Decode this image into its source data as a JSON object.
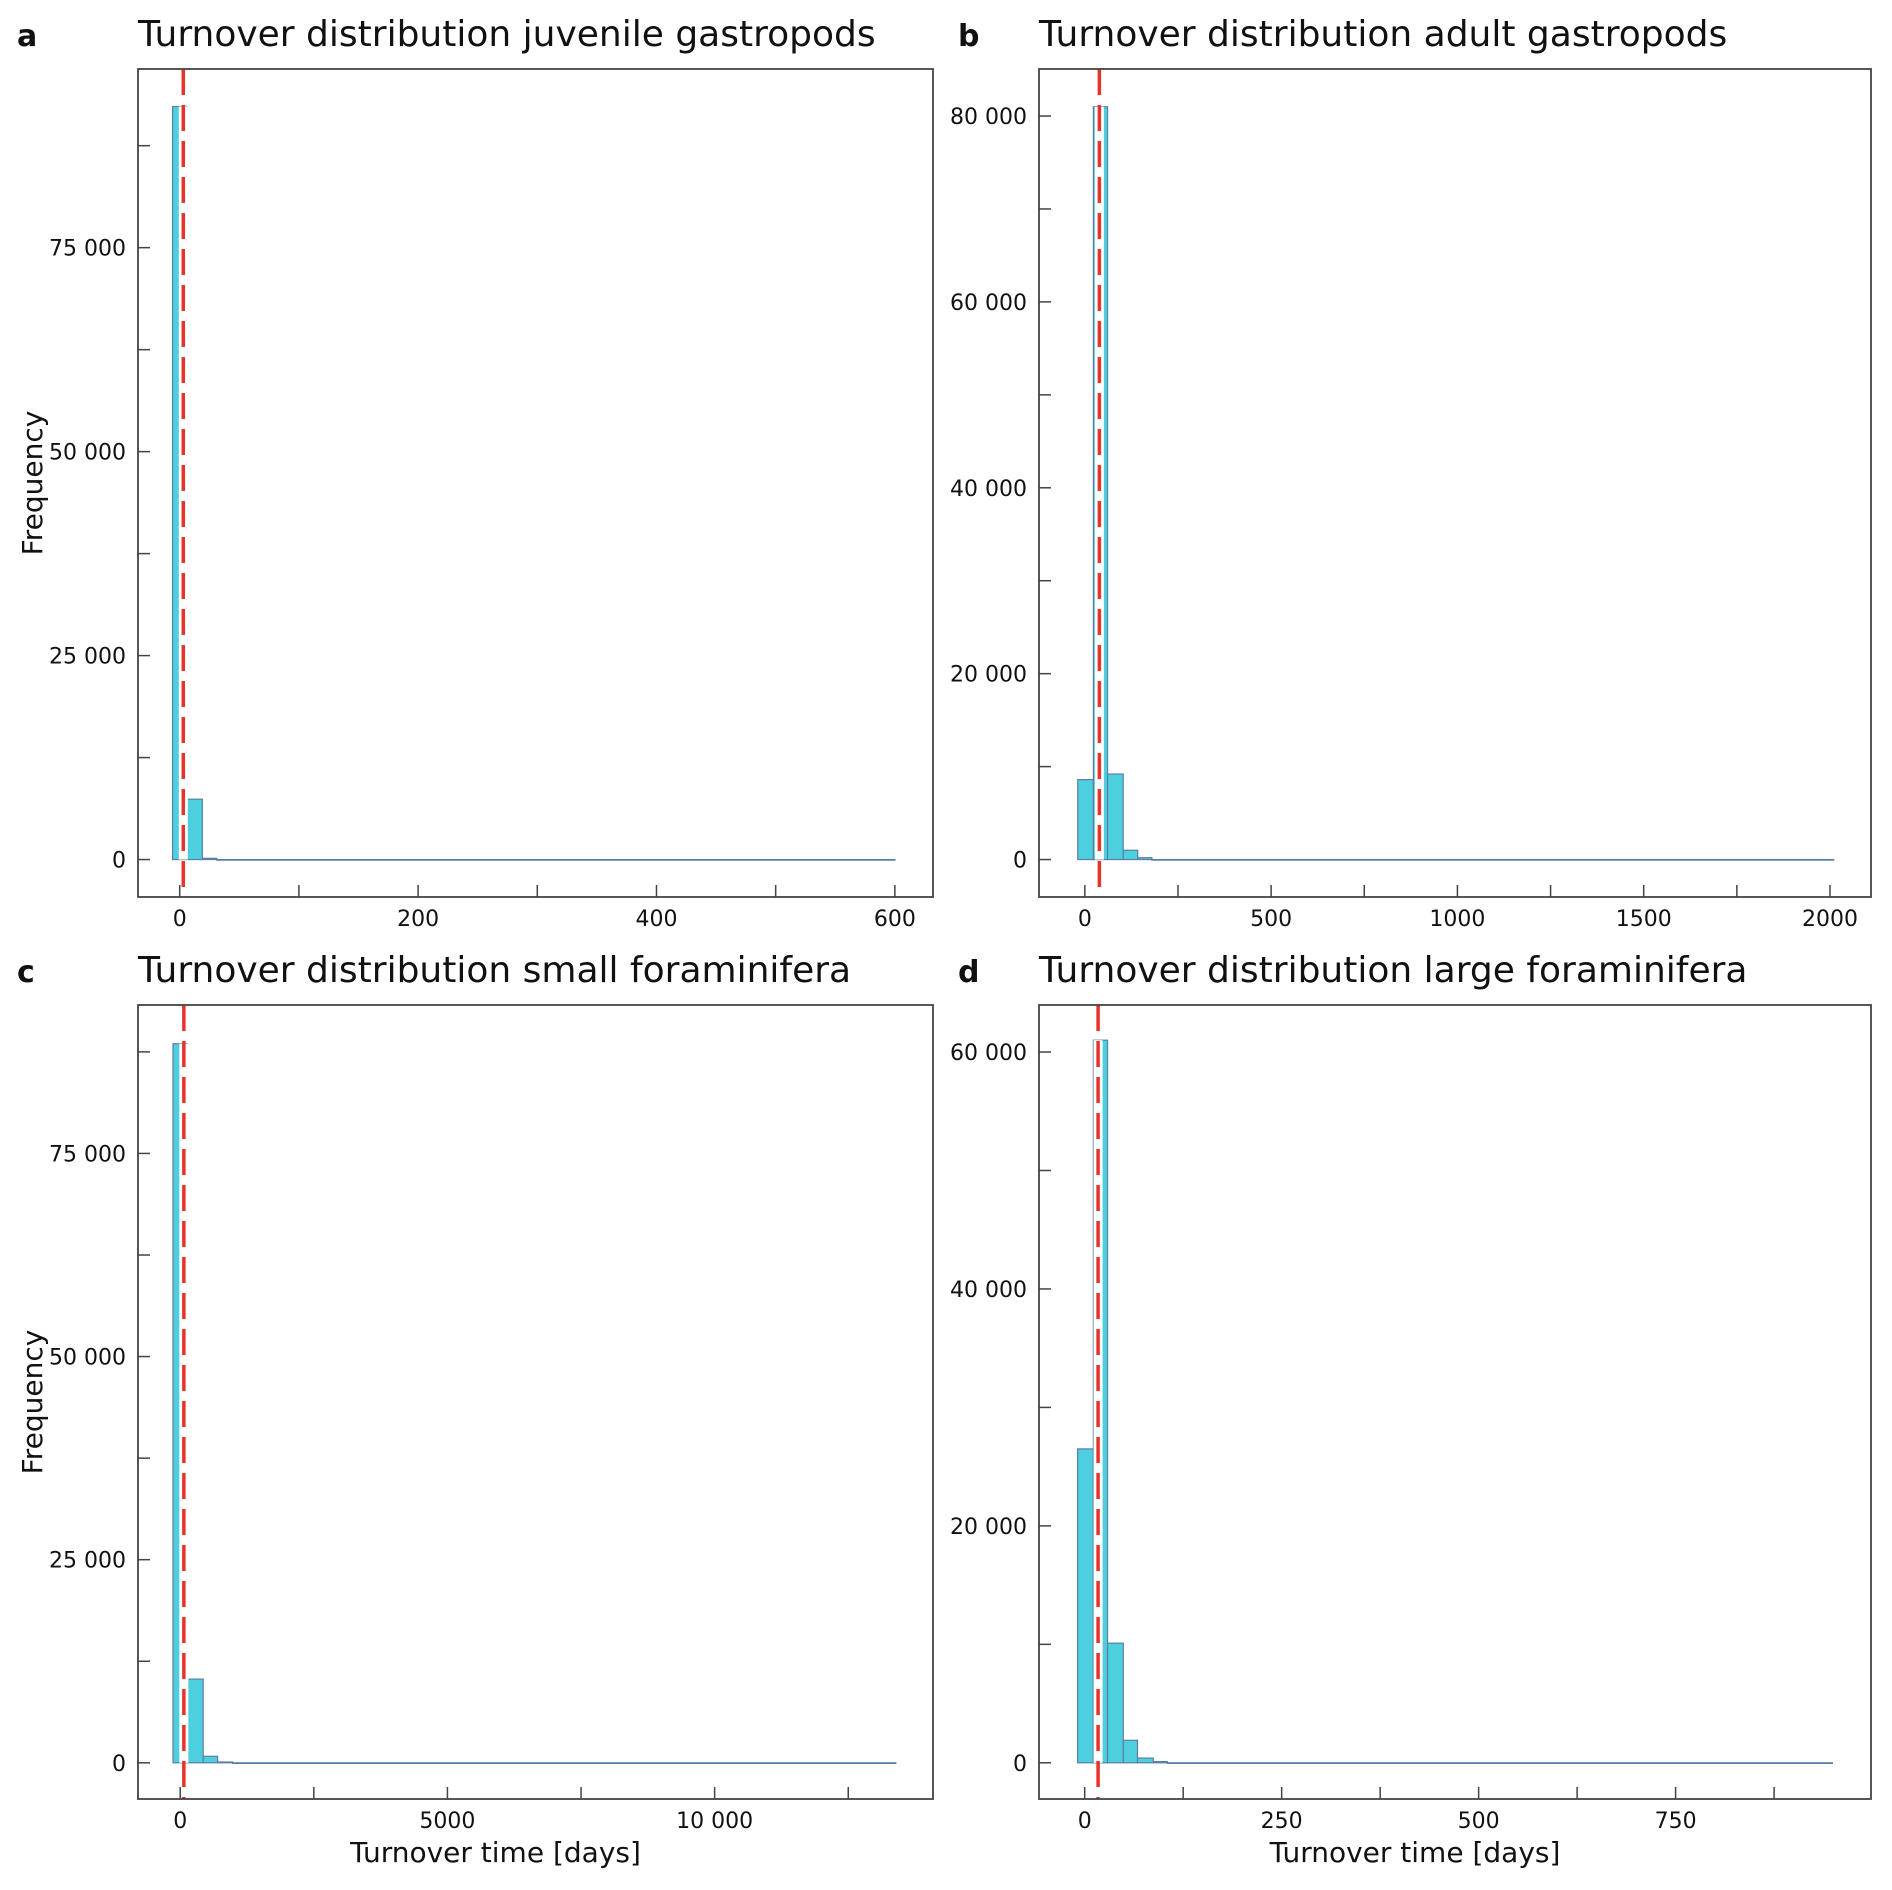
{
  "colors": {
    "bar_fill": "#4ecfe0",
    "bar_stroke": "#5b7fa3",
    "median_line": "#e8332a",
    "frame": "#444444"
  },
  "chart_data": [
    {
      "type": "bar",
      "panel": "a",
      "title": "Turnover distribution juvenile gastropods",
      "xlabel": "",
      "ylabel": "Frequency",
      "xlim": [
        -35,
        632
      ],
      "ylim": [
        -4590,
        96900
      ],
      "xticks": [
        0,
        100,
        200,
        300,
        400,
        500,
        600
      ],
      "xtick_labels": [
        "0",
        "",
        "200",
        "",
        "400",
        "",
        "600"
      ],
      "yticks": [
        0,
        12500,
        25000,
        37500,
        50000,
        62500,
        75000,
        87500
      ],
      "ytick_labels": [
        "0",
        "",
        "25 000",
        "",
        "50 000",
        "",
        "75 000",
        ""
      ],
      "bins": [
        [
          -6,
          6,
          92300
        ],
        [
          6,
          19,
          7400
        ],
        [
          19,
          31,
          150
        ],
        [
          31,
          600,
          0
        ]
      ],
      "median_line_x": 3
    },
    {
      "type": "bar",
      "panel": "b",
      "title": "Turnover distribution adult gastropods",
      "xlabel": "",
      "ylabel": "",
      "xlim": [
        -123,
        2110
      ],
      "ylim": [
        -4030,
        85060
      ],
      "xticks": [
        0,
        250,
        500,
        750,
        1000,
        1250,
        1500,
        1750,
        2000
      ],
      "xtick_labels": [
        "0",
        "",
        "500",
        "",
        "1000",
        "",
        "1500",
        "",
        "2000"
      ],
      "yticks": [
        0,
        10000,
        20000,
        30000,
        40000,
        50000,
        60000,
        70000,
        80000
      ],
      "ytick_labels": [
        "0",
        "",
        "20 000",
        "",
        "40 000",
        "",
        "60 000",
        "",
        "80 000"
      ],
      "bins": [
        [
          -19,
          23,
          8600
        ],
        [
          23,
          61,
          81000
        ],
        [
          61,
          103,
          9200
        ],
        [
          103,
          142,
          1000
        ],
        [
          142,
          180,
          200
        ],
        [
          180,
          2010,
          0
        ]
      ],
      "median_line_x": 39
    },
    {
      "type": "bar",
      "panel": "c",
      "title": "Turnover distribution small foraminifera",
      "xlabel": "Turnover time [days]",
      "ylabel": "Frequency",
      "xlim": [
        -790,
        14086
      ],
      "ylim": [
        -4455,
        93270
      ],
      "xticks": [
        0,
        2500,
        5000,
        7500,
        10000,
        12500
      ],
      "xtick_labels": [
        "0",
        "",
        "5000",
        "",
        "10 000",
        ""
      ],
      "yticks": [
        0,
        12500,
        25000,
        37500,
        50000,
        62500,
        75000,
        87500
      ],
      "ytick_labels": [
        "0",
        "",
        "25 000",
        "",
        "50 000",
        "",
        "75 000",
        ""
      ],
      "bins": [
        [
          -135,
          135,
          88500
        ],
        [
          135,
          430,
          10300
        ],
        [
          430,
          700,
          800
        ],
        [
          700,
          980,
          100
        ],
        [
          980,
          13390,
          0
        ]
      ],
      "median_line_x": 68
    },
    {
      "type": "bar",
      "panel": "d",
      "title": "Turnover distribution large foraminifera",
      "xlabel": "Turnover time [days]",
      "ylabel": "",
      "xlim": [
        -58,
        998
      ],
      "ylim": [
        -3056,
        63970
      ],
      "xticks": [
        0,
        125,
        250,
        375,
        500,
        625,
        750,
        875
      ],
      "xtick_labels": [
        "0",
        "",
        "250",
        "",
        "500",
        "",
        "750",
        ""
      ],
      "yticks": [
        0,
        10000,
        20000,
        30000,
        40000,
        50000,
        60000
      ],
      "ytick_labels": [
        "0",
        "",
        "20 000",
        "",
        "40 000",
        "",
        "60 000"
      ],
      "bins": [
        [
          -9,
          11,
          26500
        ],
        [
          11,
          29,
          61000
        ],
        [
          29,
          49,
          10100
        ],
        [
          49,
          67,
          1900
        ],
        [
          67,
          87,
          400
        ],
        [
          87,
          105,
          100
        ],
        [
          105,
          949,
          0
        ]
      ],
      "median_line_x": 17
    }
  ]
}
